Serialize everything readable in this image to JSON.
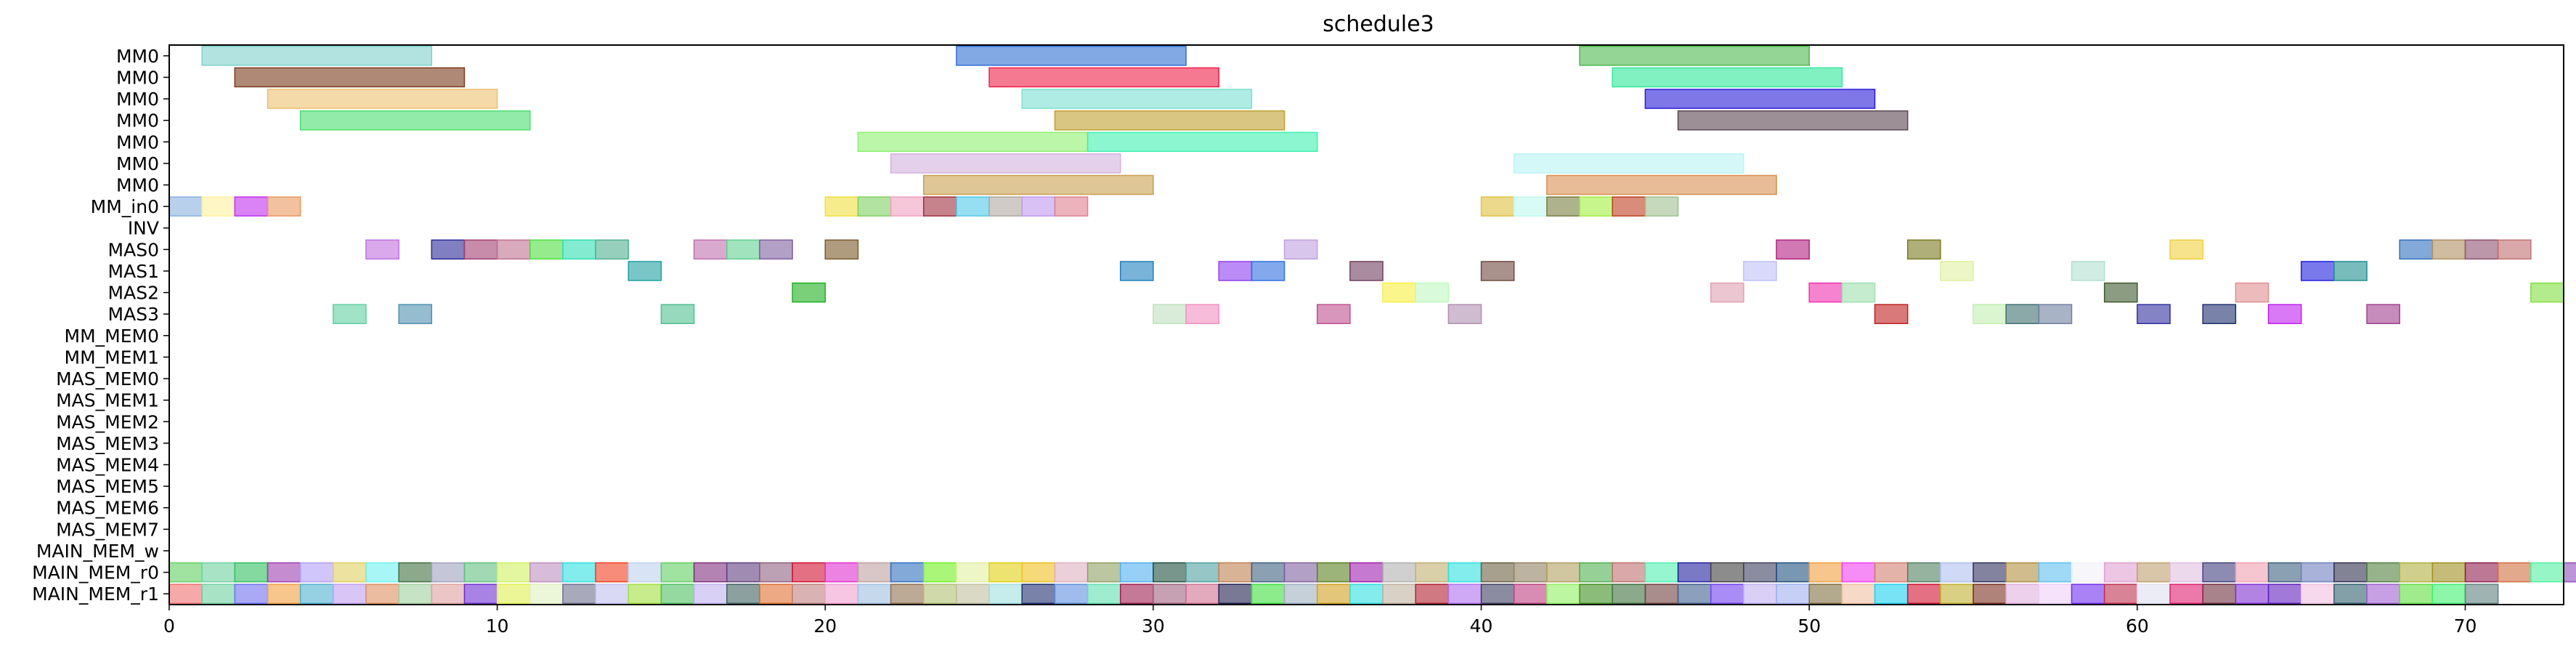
{
  "chart_data": {
    "type": "gantt",
    "title": "schedule3",
    "xlabel": "",
    "ylabel": "",
    "xlim": [
      0,
      73
    ],
    "grid": false,
    "xticks": [
      0,
      10,
      20,
      30,
      40,
      50,
      60,
      70
    ],
    "rows": [
      "MM0",
      "MM0",
      "MM0",
      "MM0",
      "MM0",
      "MM0",
      "MM0",
      "MM_in0",
      "INV",
      "MAS0",
      "MAS1",
      "MAS2",
      "MAS3",
      "MM_MEM0",
      "MM_MEM1",
      "MAS_MEM0",
      "MAS_MEM1",
      "MAS_MEM2",
      "MAS_MEM3",
      "MAS_MEM4",
      "MAS_MEM5",
      "MAS_MEM6",
      "MAS_MEM7",
      "MAIN_MEM_w",
      "MAIN_MEM_r0",
      "MAIN_MEM_r1"
    ],
    "bars": [
      {
        "row": 0,
        "start": 1,
        "end": 8,
        "color": "#7fd1cc"
      },
      {
        "row": 0,
        "start": 24,
        "end": 31,
        "color": "#2e6fd1"
      },
      {
        "row": 0,
        "start": 43,
        "end": 50,
        "color": "#4cb84c"
      },
      {
        "row": 1,
        "start": 2,
        "end": 9,
        "color": "#7a3b1a"
      },
      {
        "row": 1,
        "start": 25,
        "end": 32,
        "color": "#f0204a"
      },
      {
        "row": 1,
        "start": 44,
        "end": 51,
        "color": "#2ee89a"
      },
      {
        "row": 2,
        "start": 3,
        "end": 10,
        "color": "#ecc070"
      },
      {
        "row": 2,
        "start": 26,
        "end": 33,
        "color": "#7ae0d0"
      },
      {
        "row": 2,
        "start": 45,
        "end": 52,
        "color": "#2a1ad8"
      },
      {
        "row": 3,
        "start": 4,
        "end": 11,
        "color": "#4ade70"
      },
      {
        "row": 3,
        "start": 27,
        "end": 34,
        "color": "#c0a030"
      },
      {
        "row": 3,
        "start": 46,
        "end": 53,
        "color": "#5a4650"
      },
      {
        "row": 4,
        "start": 21,
        "end": 28,
        "color": "#8ef070"
      },
      {
        "row": 4,
        "start": 28,
        "end": 35,
        "color": "#40f0b0"
      },
      {
        "row": 5,
        "start": 22,
        "end": 29,
        "color": "#d4b0e0"
      },
      {
        "row": 5,
        "start": 41,
        "end": 48,
        "color": "#b8f4f4"
      },
      {
        "row": 6,
        "start": 23,
        "end": 30,
        "color": "#c8a050"
      },
      {
        "row": 6,
        "start": 42,
        "end": 49,
        "color": "#d89050"
      },
      {
        "row": 7,
        "start": 0,
        "end": 1,
        "color": "#8ab0e0"
      },
      {
        "row": 7,
        "start": 1,
        "end": 2,
        "color": "#fff0a0"
      },
      {
        "row": 7,
        "start": 2,
        "end": 3,
        "color": "#c030f0"
      },
      {
        "row": 7,
        "start": 3,
        "end": 4,
        "color": "#e89860"
      },
      {
        "row": 7,
        "start": 20,
        "end": 21,
        "color": "#f0e040"
      },
      {
        "row": 7,
        "start": 21,
        "end": 22,
        "color": "#80d060"
      },
      {
        "row": 7,
        "start": 22,
        "end": 23,
        "color": "#f0a0c0"
      },
      {
        "row": 7,
        "start": 23,
        "end": 24,
        "color": "#a03040"
      },
      {
        "row": 7,
        "start": 24,
        "end": 25,
        "color": "#50c8e8"
      },
      {
        "row": 7,
        "start": 25,
        "end": 26,
        "color": "#b0a8a0"
      },
      {
        "row": 7,
        "start": 26,
        "end": 27,
        "color": "#c098f0"
      },
      {
        "row": 7,
        "start": 27,
        "end": 28,
        "color": "#e08090"
      },
      {
        "row": 7,
        "start": 40,
        "end": 41,
        "color": "#e0c040"
      },
      {
        "row": 7,
        "start": 41,
        "end": 42,
        "color": "#c0f8f0"
      },
      {
        "row": 7,
        "start": 42,
        "end": 43,
        "color": "#7a8040"
      },
      {
        "row": 7,
        "start": 43,
        "end": 44,
        "color": "#a0f040"
      },
      {
        "row": 7,
        "start": 44,
        "end": 45,
        "color": "#c04020"
      },
      {
        "row": 7,
        "start": 45,
        "end": 46,
        "color": "#a0c090"
      },
      {
        "row": 9,
        "start": 6,
        "end": 7,
        "color": "#c070e0"
      },
      {
        "row": 9,
        "start": 8,
        "end": 9,
        "color": "#2a2a9a"
      },
      {
        "row": 9,
        "start": 9,
        "end": 10,
        "color": "#a04070"
      },
      {
        "row": 9,
        "start": 10,
        "end": 11,
        "color": "#c07090"
      },
      {
        "row": 9,
        "start": 11,
        "end": 12,
        "color": "#50e040"
      },
      {
        "row": 9,
        "start": 12,
        "end": 13,
        "color": "#30e0b0"
      },
      {
        "row": 9,
        "start": 13,
        "end": 14,
        "color": "#50b090"
      },
      {
        "row": 9,
        "start": 16,
        "end": 17,
        "color": "#c070b0"
      },
      {
        "row": 9,
        "start": 17,
        "end": 18,
        "color": "#60d090"
      },
      {
        "row": 9,
        "start": 18,
        "end": 19,
        "color": "#8060a0"
      },
      {
        "row": 9,
        "start": 20,
        "end": 21,
        "color": "#7a5a2a"
      },
      {
        "row": 9,
        "start": 34,
        "end": 35,
        "color": "#c0a0e0"
      },
      {
        "row": 9,
        "start": 49,
        "end": 50,
        "color": "#b02080"
      },
      {
        "row": 9,
        "start": 53,
        "end": 54,
        "color": "#7a7a20"
      },
      {
        "row": 9,
        "start": 61,
        "end": 62,
        "color": "#f0d040"
      },
      {
        "row": 9,
        "start": 68,
        "end": 69,
        "color": "#3070c0"
      },
      {
        "row": 9,
        "start": 69,
        "end": 70,
        "color": "#b09060"
      },
      {
        "row": 9,
        "start": 70,
        "end": 71,
        "color": "#905070"
      },
      {
        "row": 9,
        "start": 71,
        "end": 72,
        "color": "#c07070"
      },
      {
        "row": 10,
        "start": 14,
        "end": 15,
        "color": "#20a0a0"
      },
      {
        "row": 10,
        "start": 29,
        "end": 30,
        "color": "#2080c0"
      },
      {
        "row": 10,
        "start": 32,
        "end": 33,
        "color": "#9040f0"
      },
      {
        "row": 10,
        "start": 33,
        "end": 34,
        "color": "#3070e0"
      },
      {
        "row": 10,
        "start": 36,
        "end": 37,
        "color": "#704060"
      },
      {
        "row": 10,
        "start": 40,
        "end": 41,
        "color": "#704a40"
      },
      {
        "row": 10,
        "start": 48,
        "end": 49,
        "color": "#c0c0f8"
      },
      {
        "row": 10,
        "start": 54,
        "end": 55,
        "color": "#e0f0a0"
      },
      {
        "row": 10,
        "start": 58,
        "end": 59,
        "color": "#b0e0d0"
      },
      {
        "row": 10,
        "start": 65,
        "end": 66,
        "color": "#2020e0"
      },
      {
        "row": 10,
        "start": 66,
        "end": 67,
        "color": "#209090"
      },
      {
        "row": 11,
        "start": 19,
        "end": 20,
        "color": "#20b020"
      },
      {
        "row": 11,
        "start": 37,
        "end": 38,
        "color": "#f8f040"
      },
      {
        "row": 11,
        "start": 38,
        "end": 39,
        "color": "#c0f8c0"
      },
      {
        "row": 11,
        "start": 47,
        "end": 48,
        "color": "#e0a0b0"
      },
      {
        "row": 11,
        "start": 50,
        "end": 51,
        "color": "#f030b0"
      },
      {
        "row": 11,
        "start": 51,
        "end": 52,
        "color": "#a0e0b0"
      },
      {
        "row": 11,
        "start": 59,
        "end": 60,
        "color": "#405a30"
      },
      {
        "row": 11,
        "start": 63,
        "end": 64,
        "color": "#e09090"
      },
      {
        "row": 11,
        "start": 72,
        "end": 73,
        "color": "#80e040"
      },
      {
        "row": 12,
        "start": 5,
        "end": 6,
        "color": "#60d0a0"
      },
      {
        "row": 12,
        "start": 7,
        "end": 8,
        "color": "#5090b0"
      },
      {
        "row": 12,
        "start": 15,
        "end": 16,
        "color": "#50c090"
      },
      {
        "row": 12,
        "start": 30,
        "end": 31,
        "color": "#c0e0c0"
      },
      {
        "row": 12,
        "start": 31,
        "end": 32,
        "color": "#f090c0"
      },
      {
        "row": 12,
        "start": 35,
        "end": 36,
        "color": "#c05090"
      },
      {
        "row": 12,
        "start": 39,
        "end": 40,
        "color": "#b090b0"
      },
      {
        "row": 12,
        "start": 52,
        "end": 53,
        "color": "#c02020"
      },
      {
        "row": 12,
        "start": 55,
        "end": 56,
        "color": "#c0f0b0"
      },
      {
        "row": 12,
        "start": 56,
        "end": 57,
        "color": "#407070"
      },
      {
        "row": 12,
        "start": 57,
        "end": 58,
        "color": "#7080a0"
      },
      {
        "row": 12,
        "start": 60,
        "end": 61,
        "color": "#3030a0"
      },
      {
        "row": 12,
        "start": 62,
        "end": 63,
        "color": "#203070"
      },
      {
        "row": 12,
        "start": 64,
        "end": 65,
        "color": "#c020f0"
      },
      {
        "row": 12,
        "start": 67,
        "end": 68,
        "color": "#a04090"
      }
    ],
    "main_mem_r0_colors": [
      "#60d060",
      "#70d0a0",
      "#30c060",
      "#a040b0",
      "#b0a0f8",
      "#e0d060",
      "#70f0f0",
      "#407040",
      "#a0a0c0",
      "#60c080",
      "#d0f060",
      "#c090c0",
      "#30e0e0",
      "#f04020",
      "#c0d0f0",
      "#60d060",
      "#803080",
      "#604080",
      "#906080",
      "#d01030",
      "#e030d0",
      "#c0a0a0",
      "#3070c0",
      "#70f020",
      "#e0f0a0",
      "#e0d010",
      "#f0c020",
      "#e0b0c0",
      "#90a060",
      "#50b0f0",
      "#205040",
      "#50a0a0",
      "#c08050",
      "#406080",
      "#8060a0",
      "#5a8020",
      "#a020b0",
      "#b0b0b0",
      "#c0b070",
      "#30e0e0",
      "#6a6040",
      "#908060",
      "#b0a060",
      "#50b050",
      "#c07070",
      "#50f0b0",
      "#2020a0",
      "#404040",
      "#404060",
      "#205080",
      "#f0a040",
      "#f040f0",
      "#d08070",
      "#508060",
      "#b0c0f0",
      "#303060",
      "#b09040",
      "#60c0f0",
      "#f0f0f8",
      "#e0a0d0",
      "#c0a070",
      "#e0c0e0",
      "#404080",
      "#f0a0b0",
      "#406080",
      "#7080c0",
      "#303050",
      "#508040",
      "#b0b040",
      "#a09020",
      "#902050",
      "#d07040",
      "#50f0a0",
      "#9050c0",
      "#c030f0",
      "#203070"
    ],
    "main_mem_r1_colors": [
      "#f07070",
      "#70d0a0",
      "#7070f0",
      "#f0a040",
      "#50b0d0",
      "#c0a0f0",
      "#e09060",
      "#a0d0a0",
      "#e0a0a0",
      "#7030d0",
      "#e0f050",
      "#e0f0c0",
      "#707090",
      "#c0c0f0",
      "#a0e040",
      "#50c060",
      "#c0b0f0",
      "#406060",
      "#e07030",
      "#c08080",
      "#f0a0d0",
      "#a0c0e0",
      "#907050",
      "#b0c070",
      "#c0c0a0",
      "#a0e0e0",
      "#203070",
      "#6090e0",
      "#60e0b0",
      "#a02050",
      "#a06080",
      "#d07090",
      "#202050",
      "#40e040",
      "#a0b0c0",
      "#d0a020",
      "#30e0e0",
      "#c0b0a0",
      "#b02030",
      "#b070f0",
      "#404060",
      "#c04080",
      "#90f060",
      "#409020",
      "#407040",
      "#704040",
      "#406090",
      "#7040f0",
      "#c0b0f0",
      "#a0b0f0",
      "#807040",
      "#f0c0a0",
      "#20d0f0",
      "#d01030",
      "#c0b030",
      "#7a3020",
      "#e0b0e0",
      "#f0d0f8",
      "#7030f0",
      "#c03050",
      "#e0e0f0",
      "#e02070",
      "#703040",
      "#8030d0",
      "#6020c0",
      "#f0c0e0",
      "#306070",
      "#a060d0",
      "#60e040",
      "#40f070",
      "#608080"
    ]
  }
}
